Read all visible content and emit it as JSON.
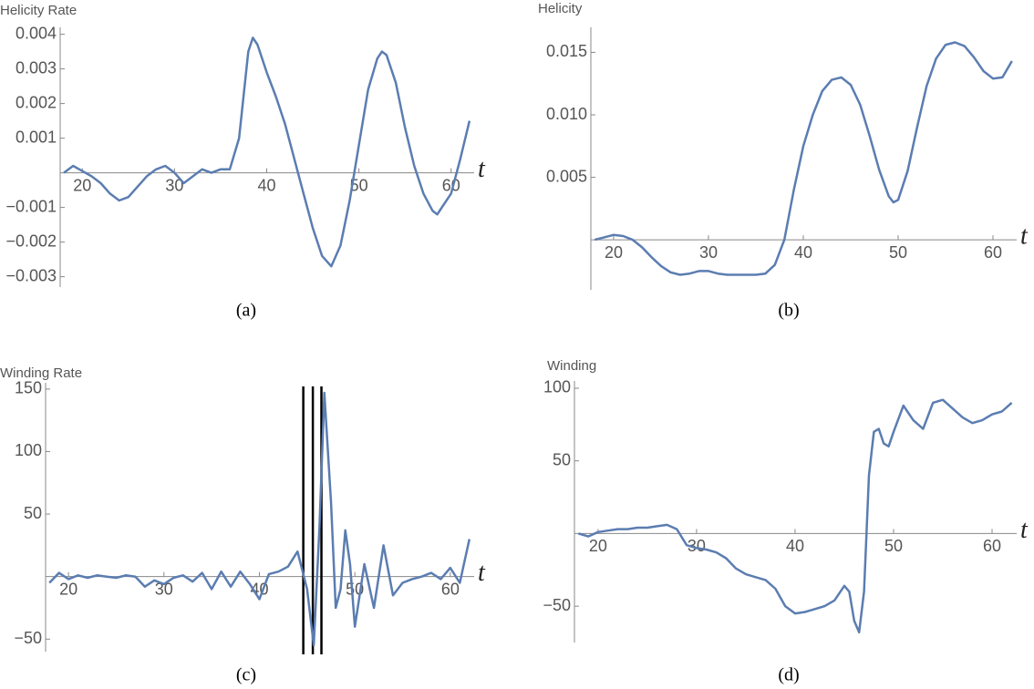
{
  "chart_data": [
    {
      "type": "line",
      "title": "Helicity  Rate",
      "xlabel": "t",
      "caption": "(a)",
      "color": "#5b7db1",
      "x": [
        18,
        19,
        20,
        21,
        22,
        23,
        24,
        25,
        26,
        27,
        28,
        29,
        30,
        31,
        32,
        33,
        34,
        35,
        36,
        37,
        38,
        38.5,
        39,
        40,
        41,
        42,
        43,
        44,
        45,
        46,
        47,
        48,
        49,
        50,
        51,
        52,
        52.5,
        53,
        54,
        55,
        56,
        57,
        58,
        58.5,
        59,
        60,
        61,
        62
      ],
      "values": [
        0,
        0.0002,
        5e-05,
        -0.0001,
        -0.0003,
        -0.0006,
        -0.0008,
        -0.0007,
        -0.0004,
        -0.0001,
        0.0001,
        0.0002,
        0,
        -0.0003,
        -0.0001,
        0.0001,
        0,
        0.0001,
        0.0001,
        0.001,
        0.0035,
        0.0039,
        0.0037,
        0.0029,
        0.0022,
        0.0014,
        0.0004,
        -0.0006,
        -0.0016,
        -0.0024,
        -0.0027,
        -0.0021,
        -0.0008,
        0.0008,
        0.0024,
        0.0033,
        0.0035,
        0.0034,
        0.0026,
        0.0013,
        0.0002,
        -0.0006,
        -0.0011,
        -0.0012,
        -0.001,
        -0.0006,
        0.0004,
        0.0015
      ],
      "xlim": [
        17.6,
        62.5
      ],
      "ylim": [
        -0.0033,
        0.0042
      ],
      "xticks": [
        20,
        30,
        40,
        50,
        60
      ],
      "yticks": [
        0.004,
        0.003,
        0.002,
        0.001,
        {
          "value": -0.001,
          "label": "−0.001"
        },
        {
          "value": -0.002,
          "label": "−0.002"
        },
        {
          "value": -0.003,
          "label": "−0.003"
        }
      ]
    },
    {
      "type": "line",
      "title": "Helicity",
      "xlabel": "t",
      "caption": "(b)",
      "color": "#5b7db1",
      "x": [
        18,
        19,
        20,
        21,
        22,
        23,
        24,
        25,
        26,
        27,
        28,
        29,
        30,
        31,
        32,
        33,
        34,
        35,
        36,
        37,
        38,
        39,
        40,
        41,
        42,
        43,
        44,
        45,
        46,
        47,
        48,
        49,
        49.5,
        50,
        51,
        52,
        53,
        54,
        55,
        56,
        57,
        58,
        59,
        60,
        61,
        62
      ],
      "values": [
        0,
        0.0002,
        0.0004,
        0.0003,
        0,
        -0.0006,
        -0.0014,
        -0.0021,
        -0.0026,
        -0.0028,
        -0.0027,
        -0.0025,
        -0.0025,
        -0.0027,
        -0.0028,
        -0.0028,
        -0.0028,
        -0.0028,
        -0.0027,
        -0.002,
        0,
        0.004,
        0.0075,
        0.01,
        0.0119,
        0.0128,
        0.013,
        0.0124,
        0.0108,
        0.0083,
        0.0056,
        0.0035,
        0.003,
        0.0032,
        0.0055,
        0.009,
        0.0123,
        0.0145,
        0.0156,
        0.0158,
        0.0155,
        0.0146,
        0.0135,
        0.0129,
        0.013,
        0.0143
      ],
      "xlim": [
        17.6,
        62.5
      ],
      "ylim": [
        -0.004,
        0.017
      ],
      "xticks": [
        20,
        30,
        40,
        50,
        60
      ],
      "yticks": [
        0.015,
        {
          "value": 0.01,
          "label": "0.010"
        },
        0.005
      ]
    },
    {
      "type": "line",
      "title": "Winding Rate",
      "xlabel": "t",
      "caption": "(c)",
      "color": "#5b7db1",
      "x": [
        18,
        19,
        20,
        21,
        22,
        23,
        24,
        25,
        26,
        27,
        28,
        29,
        30,
        31,
        32,
        33,
        34,
        35,
        36,
        37,
        38,
        39,
        40,
        41,
        42,
        43,
        44,
        45,
        45.7,
        46.3,
        46.8,
        47.5,
        48,
        48.5,
        49,
        49.5,
        50,
        51,
        52,
        53,
        54,
        55,
        56,
        57,
        58,
        59,
        60,
        61,
        62
      ],
      "values": [
        -5,
        3,
        -2,
        1,
        -1,
        1,
        0,
        -1,
        1,
        0,
        -8,
        -3,
        -6,
        -1,
        1,
        -4,
        3,
        -10,
        4,
        -8,
        4,
        -6,
        -18,
        2,
        4,
        8,
        20,
        -10,
        -55,
        40,
        147,
        60,
        -25,
        -10,
        37,
        10,
        -40,
        10,
        -25,
        25,
        -15,
        -5,
        -2,
        0,
        3,
        -2,
        7,
        -5,
        30
      ],
      "vlines": [
        44.6,
        45.6,
        46.5
      ],
      "xlim": [
        17.6,
        62.5
      ],
      "ylim": [
        -60,
        155
      ],
      "xticks": [
        20,
        30,
        40,
        50,
        60
      ],
      "yticks": [
        150,
        100,
        50,
        {
          "value": -50,
          "label": "−50"
        }
      ]
    },
    {
      "type": "line",
      "title": "Winding",
      "xlabel": "t",
      "caption": "(d)",
      "color": "#5b7db1",
      "x": [
        18,
        19,
        20,
        21,
        22,
        23,
        24,
        25,
        26,
        27,
        28,
        29,
        30,
        31,
        32,
        33,
        34,
        35,
        36,
        37,
        38,
        39,
        40,
        41,
        42,
        43,
        44,
        45,
        45.5,
        46,
        46.5,
        47,
        47.5,
        48,
        48.5,
        49,
        49.5,
        50,
        51,
        52,
        53,
        54,
        55,
        56,
        57,
        58,
        59,
        60,
        61,
        62
      ],
      "values": [
        0,
        -2,
        1,
        2,
        3,
        3,
        4,
        4,
        5,
        6,
        3,
        -8,
        -10,
        -11,
        -13,
        -17,
        -24,
        -28,
        -30,
        -32,
        -38,
        -50,
        -55,
        -54,
        -52,
        -50,
        -46,
        -36,
        -40,
        -60,
        -68,
        -40,
        40,
        70,
        72,
        62,
        60,
        70,
        88,
        78,
        72,
        90,
        92,
        86,
        80,
        76,
        78,
        82,
        84,
        90
      ],
      "xlim": [
        17.6,
        62.5
      ],
      "ylim": [
        -75,
        105
      ],
      "xticks": [
        20,
        30,
        40,
        50,
        60
      ],
      "yticks": [
        100,
        50,
        {
          "value": -50,
          "label": "−50"
        }
      ]
    }
  ]
}
